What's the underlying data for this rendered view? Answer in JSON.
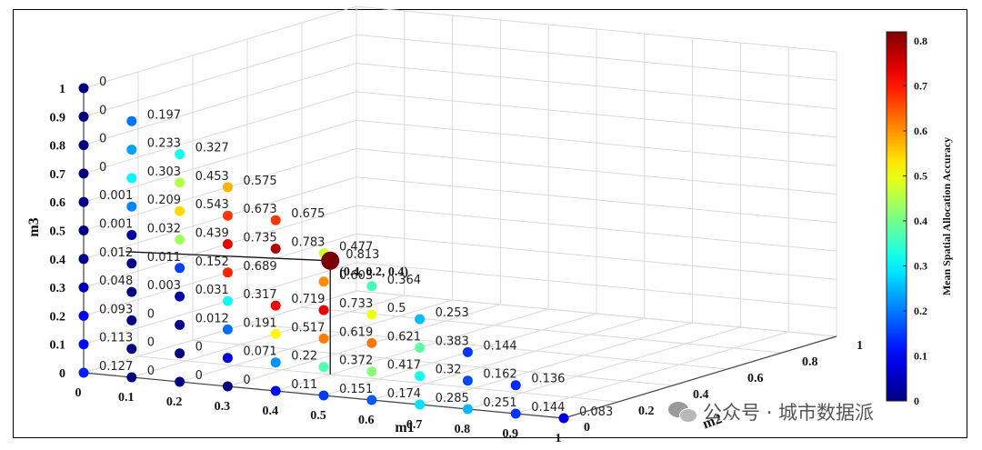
{
  "chart_data": {
    "type": "scatter",
    "xlabel": "m1",
    "ylabel": "m3",
    "zlabel": "m2",
    "x_ticks": [
      "0",
      "0.1",
      "0.2",
      "0.3",
      "0.4",
      "0.5",
      "0.6",
      "0.7",
      "0.8",
      "0.9",
      "1"
    ],
    "y_ticks": [
      "0",
      "0.1",
      "0.2",
      "0.3",
      "0.4",
      "0.5",
      "0.6",
      "0.7",
      "0.8",
      "0.9",
      "1"
    ],
    "z_ticks": [
      "0",
      "0.2",
      "0.4",
      "0.6",
      "0.8",
      "1"
    ],
    "colorbar": {
      "label": "Mean Spatial Allocation Accuracy",
      "ticks": [
        "0",
        "0.1",
        "0.2",
        "0.3",
        "0.4",
        "0.5",
        "0.6",
        "0.7",
        "0.8"
      ],
      "range": [
        0,
        0.82
      ],
      "colormap": "jet"
    },
    "highlight": {
      "label": "(0.4, 0.2, 0.4)",
      "value": 0.813
    },
    "points": [
      {
        "m1": 0,
        "m2": 0,
        "m3": 0,
        "v": 0.127
      },
      {
        "m1": 0,
        "m2": 0,
        "m3": 0.1,
        "v": 0.113
      },
      {
        "m1": 0,
        "m2": 0,
        "m3": 0.2,
        "v": 0.093
      },
      {
        "m1": 0,
        "m2": 0,
        "m3": 0.3,
        "v": 0.048
      },
      {
        "m1": 0,
        "m2": 0,
        "m3": 0.4,
        "v": 0.012
      },
      {
        "m1": 0,
        "m2": 0,
        "m3": 0.5,
        "v": 0.001
      },
      {
        "m1": 0,
        "m2": 0,
        "m3": 0.6,
        "v": 0.001
      },
      {
        "m1": 0,
        "m2": 0,
        "m3": 0.7,
        "v": 0
      },
      {
        "m1": 0,
        "m2": 0,
        "m3": 0.8,
        "v": 0
      },
      {
        "m1": 0,
        "m2": 0,
        "m3": 0.9,
        "v": 0
      },
      {
        "m1": 0,
        "m2": 0,
        "m3": 1,
        "v": 0
      },
      {
        "m1": 0.1,
        "m2": 0,
        "m3": 0,
        "v": 0
      },
      {
        "m1": 0.2,
        "m2": 0,
        "m3": 0,
        "v": 0
      },
      {
        "m1": 0.3,
        "m2": 0,
        "m3": 0,
        "v": 0
      },
      {
        "m1": 0.4,
        "m2": 0,
        "m3": 0,
        "v": 0.11
      },
      {
        "m1": 0.5,
        "m2": 0,
        "m3": 0,
        "v": 0.151
      },
      {
        "m1": 0.6,
        "m2": 0,
        "m3": 0,
        "v": 0.174
      },
      {
        "m1": 0.7,
        "m2": 0,
        "m3": 0,
        "v": 0.285
      },
      {
        "m1": 0.8,
        "m2": 0,
        "m3": 0,
        "v": 0.251
      },
      {
        "m1": 0.9,
        "m2": 0,
        "m3": 0,
        "v": 0.144
      },
      {
        "m1": 1,
        "m2": 0,
        "m3": 0,
        "v": 0.083
      },
      {
        "m1": 0.1,
        "m2": 0,
        "m3": 0.1,
        "v": 0
      },
      {
        "m1": 0.1,
        "m2": 0,
        "m3": 0.2,
        "v": 0
      },
      {
        "m1": 0.1,
        "m2": 0,
        "m3": 0.3,
        "v": 0.003
      },
      {
        "m1": 0.1,
        "m2": 0,
        "m3": 0.4,
        "v": 0.011
      },
      {
        "m1": 0.1,
        "m2": 0,
        "m3": 0.5,
        "v": 0.032
      },
      {
        "m1": 0.1,
        "m2": 0,
        "m3": 0.6,
        "v": 0.209
      },
      {
        "m1": 0.1,
        "m2": 0,
        "m3": 0.7,
        "v": 0.303
      },
      {
        "m1": 0.1,
        "m2": 0,
        "m3": 0.8,
        "v": 0.233
      },
      {
        "m1": 0.1,
        "m2": 0,
        "m3": 0.9,
        "v": 0.197
      },
      {
        "m1": 0.2,
        "m2": 0,
        "m3": 0.1,
        "v": 0
      },
      {
        "m1": 0.2,
        "m2": 0,
        "m3": 0.2,
        "v": 0.012
      },
      {
        "m1": 0.2,
        "m2": 0,
        "m3": 0.3,
        "v": 0.031
      },
      {
        "m1": 0.2,
        "m2": 0,
        "m3": 0.4,
        "v": 0.152
      },
      {
        "m1": 0.2,
        "m2": 0,
        "m3": 0.5,
        "v": 0.439
      },
      {
        "m1": 0.2,
        "m2": 0,
        "m3": 0.6,
        "v": 0.543
      },
      {
        "m1": 0.2,
        "m2": 0,
        "m3": 0.7,
        "v": 0.453
      },
      {
        "m1": 0.2,
        "m2": 0,
        "m3": 0.8,
        "v": 0.327
      },
      {
        "m1": 0.3,
        "m2": 0,
        "m3": 0.1,
        "v": 0.071
      },
      {
        "m1": 0.3,
        "m2": 0,
        "m3": 0.2,
        "v": 0.191
      },
      {
        "m1": 0.3,
        "m2": 0,
        "m3": 0.3,
        "v": 0.317
      },
      {
        "m1": 0.3,
        "m2": 0,
        "m3": 0.4,
        "v": 0.689
      },
      {
        "m1": 0.3,
        "m2": 0,
        "m3": 0.5,
        "v": 0.735
      },
      {
        "m1": 0.3,
        "m2": 0,
        "m3": 0.6,
        "v": 0.673
      },
      {
        "m1": 0.3,
        "m2": 0,
        "m3": 0.7,
        "v": 0.575
      },
      {
        "m1": 0.4,
        "m2": 0,
        "m3": 0.1,
        "v": 0.22
      },
      {
        "m1": 0.4,
        "m2": 0,
        "m3": 0.2,
        "v": 0.517
      },
      {
        "m1": 0.4,
        "m2": 0,
        "m3": 0.3,
        "v": 0.719
      },
      {
        "m1": 0.4,
        "m2": 0,
        "m3": 0.5,
        "v": 0.783
      },
      {
        "m1": 0.4,
        "m2": 0,
        "m3": 0.6,
        "v": 0.675
      },
      {
        "m1": 0.5,
        "m2": 0,
        "m3": 0.1,
        "v": 0.372
      },
      {
        "m1": 0.5,
        "m2": 0,
        "m3": 0.2,
        "v": 0.619
      },
      {
        "m1": 0.5,
        "m2": 0,
        "m3": 0.3,
        "v": 0.733
      },
      {
        "m1": 0.5,
        "m2": 0,
        "m3": 0.4,
        "v": 0.603
      },
      {
        "m1": 0.5,
        "m2": 0,
        "m3": 0.5,
        "v": 0.477
      },
      {
        "m1": 0.6,
        "m2": 0,
        "m3": 0.1,
        "v": 0.417
      },
      {
        "m1": 0.6,
        "m2": 0,
        "m3": 0.2,
        "v": 0.621
      },
      {
        "m1": 0.6,
        "m2": 0,
        "m3": 0.3,
        "v": 0.5
      },
      {
        "m1": 0.6,
        "m2": 0,
        "m3": 0.4,
        "v": 0.364
      },
      {
        "m1": 0.7,
        "m2": 0,
        "m3": 0.1,
        "v": 0.32
      },
      {
        "m1": 0.7,
        "m2": 0,
        "m3": 0.2,
        "v": 0.383
      },
      {
        "m1": 0.7,
        "m2": 0,
        "m3": 0.3,
        "v": 0.253
      },
      {
        "m1": 0.8,
        "m2": 0,
        "m3": 0.1,
        "v": 0.162
      },
      {
        "m1": 0.8,
        "m2": 0,
        "m3": 0.2,
        "v": 0.144
      },
      {
        "m1": 0.9,
        "m2": 0,
        "m3": 0.1,
        "v": 0.136
      }
    ]
  },
  "watermark": {
    "text": "公众号 · 城市数据派",
    "icon": "wechat-icon"
  }
}
